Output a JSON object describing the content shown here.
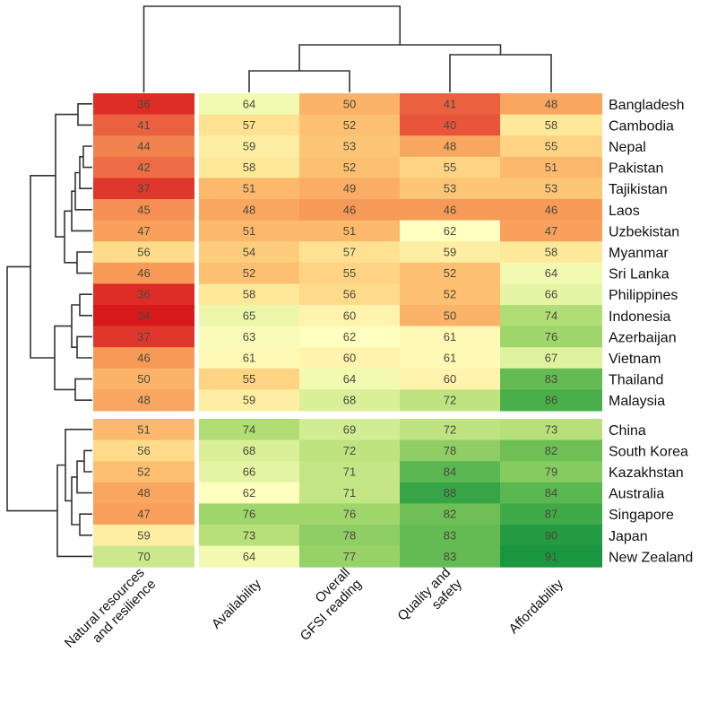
{
  "chart_data": {
    "type": "heatmap",
    "title": "",
    "columns": [
      "Natural resources\nand resilience",
      "Availability",
      "Overall\nGFSI reading",
      "Quality and\nsafety",
      "Affordability"
    ],
    "column_groups": [
      [
        0
      ],
      [
        1,
        2,
        3,
        4
      ]
    ],
    "rows": [
      "Bangladesh",
      "Cambodia",
      "Nepal",
      "Pakistan",
      "Tajikistan",
      "Laos",
      "Uzbekistan",
      "Myanmar",
      "Sri Lanka",
      "Philippines",
      "Indonesia",
      "Azerbaijan",
      "Vietnam",
      "Thailand",
      "Malaysia",
      "China",
      "South Korea",
      "Kazakhstan",
      "Australia",
      "Singapore",
      "Japan",
      "New Zealand"
    ],
    "row_groups": [
      [
        0,
        14
      ],
      [
        15,
        21
      ]
    ],
    "values": [
      [
        36,
        64,
        50,
        41,
        48
      ],
      [
        41,
        57,
        52,
        40,
        58
      ],
      [
        44,
        59,
        53,
        48,
        55
      ],
      [
        42,
        58,
        52,
        55,
        51
      ],
      [
        37,
        51,
        49,
        53,
        53
      ],
      [
        45,
        48,
        46,
        46,
        46
      ],
      [
        47,
        51,
        51,
        62,
        47
      ],
      [
        56,
        54,
        57,
        59,
        58
      ],
      [
        46,
        52,
        55,
        52,
        64
      ],
      [
        36,
        58,
        56,
        52,
        66
      ],
      [
        34,
        65,
        60,
        50,
        74
      ],
      [
        37,
        63,
        62,
        61,
        76
      ],
      [
        46,
        61,
        60,
        61,
        67
      ],
      [
        50,
        55,
        64,
        60,
        83
      ],
      [
        48,
        59,
        68,
        72,
        86
      ],
      [
        51,
        74,
        69,
        72,
        73
      ],
      [
        56,
        68,
        72,
        78,
        82
      ],
      [
        52,
        66,
        71,
        84,
        79
      ],
      [
        48,
        62,
        71,
        88,
        84
      ],
      [
        47,
        76,
        76,
        82,
        87
      ],
      [
        59,
        73,
        78,
        83,
        90
      ],
      [
        70,
        64,
        77,
        83,
        91
      ]
    ],
    "color_scale": {
      "name": "RdYlGn",
      "domain": [
        34,
        62,
        91
      ],
      "colors": [
        "#d7191c",
        "#ffffbf",
        "#1a9641"
      ]
    },
    "column_dendrogram": true,
    "row_dendrogram": true,
    "legend": "none"
  }
}
